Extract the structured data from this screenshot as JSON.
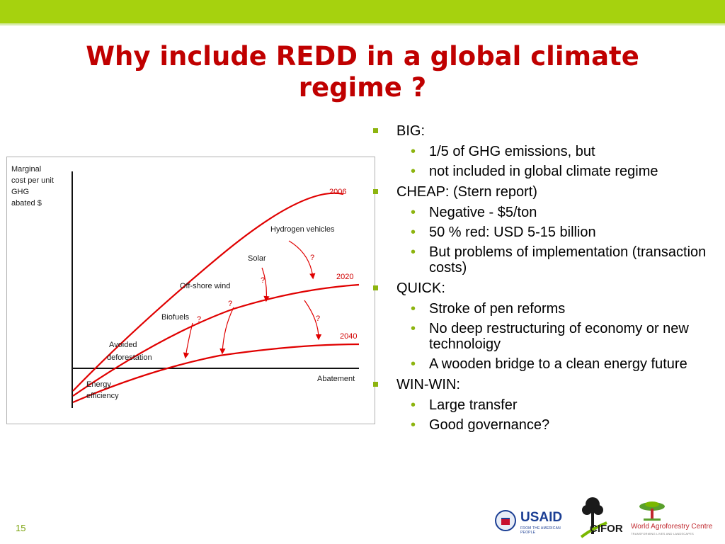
{
  "slide": {
    "title_line1": "Why include REDD in a global climate",
    "title_line2": "regime ?",
    "page_number": "15"
  },
  "diagram": {
    "ylabel_lines": [
      "Marginal",
      "cost per unit",
      "GHG",
      "abated  $"
    ],
    "xlabel": "Abatement",
    "curve_labels": [
      "2006",
      "2020",
      "2040"
    ],
    "item_labels": {
      "energy_line1": "Energy",
      "energy_line2": "efficiency",
      "avoided_line1": "Avoided",
      "avoided_line2": "deforestation",
      "biofuels": "Biofuels",
      "offshore": "Off-shore wind",
      "solar": "Solar",
      "hydrogen": "Hydrogen vehicles"
    },
    "question_mark": "?",
    "colors": {
      "curve": "#e00000",
      "axis": "#111111",
      "text": "#1a1a1a"
    }
  },
  "bullets": [
    {
      "label": "BIG:",
      "sub": [
        "1/5 of GHG emissions, but",
        "not included in global climate regime"
      ]
    },
    {
      "label": "CHEAP: (Stern report)",
      "sub": [
        "Negative - $5/ton",
        "50 % red: USD 5-15 billion",
        "But problems of implementation (transaction costs)"
      ]
    },
    {
      "label": "QUICK:",
      "sub": [
        "Stroke of pen reforms",
        "No deep restructuring of economy or new technoloigy",
        "A wooden bridge to a clean energy future"
      ]
    },
    {
      "label": "WIN-WIN:",
      "sub": [
        "Large transfer",
        "Good governance?"
      ]
    }
  ],
  "logos": {
    "usaid": "USAID",
    "usaid_sub": "FROM THE AMERICAN PEOPLE",
    "cifor": "CIFOR",
    "wac": "World Agroforestry Centre",
    "wac_sub": "TRANSFORMING LIVES AND LANDSCAPES"
  },
  "theme": {
    "accent": "#a6d20e",
    "title_color": "#c00000",
    "bullet_color": "#8db40f"
  }
}
